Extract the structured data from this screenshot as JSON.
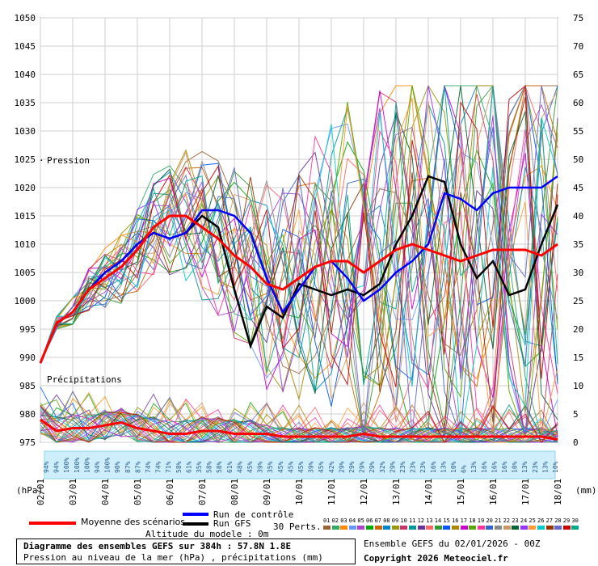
{
  "chart_data": {
    "type": "line",
    "title": "Diagramme des ensembles GEFS sur 384h : 57.8N 1.8E",
    "subtitle": "Pression au niveau de la mer (hPa) , précipitations (mm)",
    "left_axis": {
      "unit_label": "(hPa)",
      "ticks": [
        975,
        980,
        985,
        990,
        995,
        1000,
        1005,
        1010,
        1015,
        1020,
        1025,
        1030,
        1035,
        1040,
        1045,
        1050
      ],
      "ylim": [
        975,
        1050
      ]
    },
    "right_axis": {
      "unit_label": "(mm)",
      "ticks": [
        0,
        5,
        10,
        15,
        20,
        25,
        30,
        35,
        40,
        45,
        50,
        55,
        60,
        65,
        70,
        75
      ],
      "ylim": [
        0,
        75
      ]
    },
    "x_ticks": [
      "02/01",
      "03/01",
      "04/01",
      "05/01",
      "06/01",
      "07/01",
      "08/01",
      "09/01",
      "10/01",
      "11/01",
      "12/01",
      "13/01",
      "14/01",
      "15/01",
      "16/01",
      "17/01",
      "18/01"
    ],
    "annotations": {
      "pressure_label": "Pression",
      "precip_label": "Précipitations"
    },
    "grid": true,
    "probabilities": [
      "94%",
      "94%",
      "100%",
      "100%",
      "100%",
      "94%",
      "100%",
      "90%",
      "87%",
      "87%",
      "74%",
      "74%",
      "71%",
      "58%",
      "61%",
      "35%",
      "58%",
      "58%",
      "61%",
      "48%",
      "45%",
      "39%",
      "35%",
      "45%",
      "45%",
      "45%",
      "39%",
      "45%",
      "42%",
      "29%",
      "29%",
      "29%",
      "29%",
      "32%",
      "29%",
      "23%",
      "23%",
      "23%",
      "16%",
      "13%",
      "10%",
      "6%",
      "13%",
      "16%",
      "16%",
      "16%",
      "10%",
      "13%",
      "23%",
      "13%",
      "10%"
    ],
    "series": [
      {
        "name": "Moyenne des scénarios",
        "color": "#ff0000",
        "x": [
          "02/01 00h",
          "02/01 12h",
          "03/01 00h",
          "03/01 12h",
          "04/01 00h",
          "04/01 12h",
          "05/01 00h",
          "05/01 12h",
          "06/01 00h",
          "06/01 12h",
          "07/01 00h",
          "07/01 12h",
          "08/01 00h",
          "08/01 12h",
          "09/01 00h",
          "09/01 12h",
          "10/01 00h",
          "10/01 12h",
          "11/01 00h",
          "11/01 12h",
          "12/01 00h",
          "12/01 12h",
          "13/01 00h",
          "13/01 12h",
          "14/01 00h",
          "14/01 12h",
          "15/01 00h",
          "15/01 12h",
          "16/01 00h",
          "16/01 12h",
          "17/01 00h",
          "17/01 12h",
          "18/01 00h"
        ],
        "values": [
          989,
          996,
          998,
          1002,
          1004,
          1006,
          1009,
          1013,
          1015,
          1015,
          1013,
          1011,
          1008,
          1006,
          1003,
          1002,
          1004,
          1006,
          1007,
          1007,
          1005,
          1007,
          1009,
          1010,
          1009,
          1008,
          1007,
          1008,
          1009,
          1009,
          1009,
          1008,
          1010
        ]
      },
      {
        "name": "Run de contrôle",
        "color": "#0000ff",
        "x": [
          "02/01 00h",
          "02/01 12h",
          "03/01 00h",
          "03/01 12h",
          "04/01 00h",
          "04/01 12h",
          "05/01 00h",
          "05/01 12h",
          "06/01 00h",
          "06/01 12h",
          "07/01 00h",
          "07/01 12h",
          "08/01 00h",
          "08/01 12h",
          "09/01 00h",
          "09/01 12h",
          "10/01 00h",
          "10/01 12h",
          "11/01 00h",
          "11/01 12h",
          "12/01 00h",
          "12/01 12h",
          "13/01 00h",
          "13/01 12h",
          "14/01 00h",
          "14/01 12h",
          "15/01 00h",
          "15/01 12h",
          "16/01 00h",
          "16/01 12h",
          "17/01 00h",
          "17/01 12h",
          "18/01 00h"
        ],
        "values": [
          989,
          996,
          998,
          1002,
          1005,
          1007,
          1010,
          1012,
          1011,
          1012,
          1016,
          1016,
          1015,
          1012,
          1004,
          998,
          1002,
          1006,
          1007,
          1004,
          1000,
          1002,
          1005,
          1007,
          1010,
          1019,
          1018,
          1016,
          1019,
          1020,
          1020,
          1020,
          1022
        ]
      },
      {
        "name": "Run GFS",
        "color": "#000000",
        "x": [
          "02/01 00h",
          "02/01 12h",
          "03/01 00h",
          "03/01 12h",
          "04/01 00h",
          "04/01 12h",
          "05/01 00h",
          "05/01 12h",
          "06/01 00h",
          "06/01 12h",
          "07/01 00h",
          "07/01 12h",
          "08/01 00h",
          "08/01 12h",
          "09/01 00h",
          "09/01 12h",
          "10/01 00h",
          "10/01 12h",
          "11/01 00h",
          "11/01 12h",
          "12/01 00h",
          "12/01 12h",
          "13/01 00h",
          "13/01 12h",
          "14/01 00h",
          "14/01 12h",
          "15/01 00h",
          "15/01 12h",
          "16/01 00h",
          "16/01 12h",
          "17/01 00h",
          "17/01 12h",
          "18/01 00h"
        ],
        "values": [
          989,
          996,
          998,
          1002,
          1005,
          1007,
          1010,
          1012,
          1011,
          1012,
          1015,
          1013,
          1002,
          992,
          999,
          997,
          1003,
          1002,
          1001,
          1002,
          1001,
          1003,
          1010,
          1015,
          1022,
          1021,
          1010,
          1004,
          1007,
          1001,
          1002,
          1010,
          1017
        ]
      }
    ],
    "perturbation_colors": [
      "#996633",
      "#33aa66",
      "#ff8800",
      "#6699ff",
      "#aa44cc",
      "#00aa00",
      "#cc6600",
      "#0088cc",
      "#999900",
      "#cc3366",
      "#009999",
      "#663399",
      "#ff6666",
      "#339933",
      "#0055ff",
      "#aa8800",
      "#cc00cc",
      "#55aa00",
      "#ff3399",
      "#3366cc",
      "#888888",
      "#cc9966",
      "#006633",
      "#9933ff",
      "#ff9933",
      "#00cccc",
      "#993300",
      "#6666cc",
      "#cc0000",
      "#00aa88"
    ],
    "precip_mean": {
      "name": "Moyenne des scénarios",
      "values_mm": [
        4,
        2,
        2.5,
        2.5,
        3,
        3.5,
        2.5,
        2,
        1.5,
        1.5,
        2,
        2,
        1.5,
        1.5,
        1.5,
        1,
        1,
        1,
        1,
        1,
        1.5,
        1,
        1,
        1,
        1,
        1,
        1,
        1,
        1,
        1,
        1,
        1,
        0.5
      ]
    }
  },
  "legend": {
    "mean_label": "Moyenne des scénarios",
    "control_label": "Run de contrôle",
    "gfs_label": "Run GFS",
    "perts_label": "30 Perts.",
    "pert_numbers": [
      "01",
      "02",
      "03",
      "04",
      "05",
      "06",
      "07",
      "08",
      "09",
      "10",
      "11",
      "12",
      "13",
      "14",
      "15",
      "16",
      "17",
      "18",
      "19",
      "20",
      "21",
      "22",
      "23",
      "24",
      "25",
      "26",
      "27",
      "28",
      "29",
      "30"
    ]
  },
  "altitude": "Altitude du modele : 0m",
  "info": {
    "title_line": "Diagramme des ensembles GEFS sur 384h : 57.8N 1.8E",
    "subtitle_line": "Pression au niveau de la mer (hPa) , précipitations (mm)",
    "ensemble_line": "Ensemble GEFS du 02/01/2026 - 00Z",
    "copyright_line": "Copyright 2026 Meteociel.fr"
  }
}
